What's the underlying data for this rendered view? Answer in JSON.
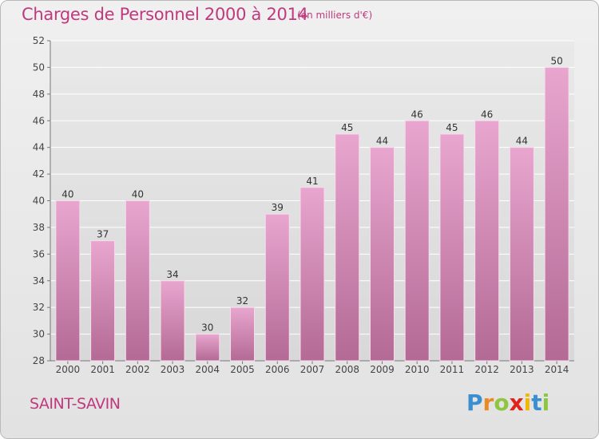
{
  "chart_data": {
    "type": "bar",
    "title": "Charges de Personnel 2000 à 2014",
    "subtitle": "(en milliers d'€)",
    "categories": [
      "2000",
      "2001",
      "2002",
      "2003",
      "2004",
      "2005",
      "2006",
      "2007",
      "2008",
      "2009",
      "2010",
      "2011",
      "2012",
      "2013",
      "2014"
    ],
    "values": [
      40,
      37,
      40,
      34,
      30,
      32,
      39,
      41,
      45,
      44,
      46,
      45,
      46,
      44,
      50
    ],
    "ylim": [
      28,
      52
    ],
    "yticks": [
      28,
      30,
      32,
      34,
      36,
      38,
      40,
      42,
      44,
      46,
      48,
      50,
      52
    ],
    "grid": true,
    "bar_color_top": "#e8a6cf",
    "bar_color_bottom": "#b36a95",
    "label_color": "#333333"
  },
  "footer": {
    "commune": "SAINT-SAVIN",
    "logo_letters": [
      {
        "ch": "P",
        "color": "#3a8fd1"
      },
      {
        "ch": "r",
        "color": "#e98a24"
      },
      {
        "ch": "o",
        "color": "#8dc63f"
      },
      {
        "ch": "x",
        "color": "#e2231a"
      },
      {
        "ch": "i",
        "color": "#f2b705"
      },
      {
        "ch": "t",
        "color": "#3a8fd1"
      },
      {
        "ch": "i",
        "color": "#8dc63f"
      }
    ]
  }
}
